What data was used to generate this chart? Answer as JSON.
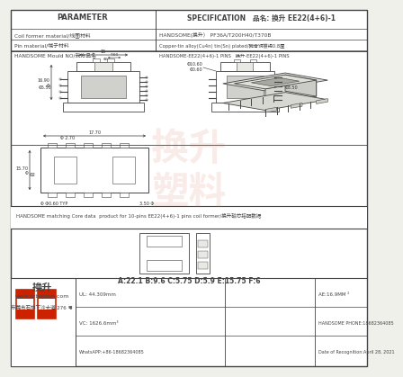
{
  "title": "PARAMETER",
  "spec_title": "SPECIFICATION   品名: 换升 EE22(4+6)-1",
  "row1_label": "Coil former material/线圈材料",
  "row1_val": "HANDSOME(换升） PF36A/T200H40/T370B",
  "row2_label": "Pin material/端子材料",
  "row2_val": "Copper-tin alloy(Cu4n) tin(Sn) plated/磷青铜镀锡0.8厘",
  "row3_label": "HANDSOME Mould NO/我方品名",
  "row3_val": "HANDSOME-EE22(4+6)-1 PINS   换升-EE22(4+6)-1 PINS",
  "bottom_note": "HANDSOME matching Core data  product for 10-pins EE22(4+6)-1 pins coil former/换升磁芯搭配数据",
  "dims": "A:22.1 B:9.6 C:5.75 D:5.9 E:15.75 F:6",
  "company": "换升  www.szbobbin.com",
  "address": "东莞市石排下沙大道 276 号",
  "ul": "UL: 44.309mm",
  "ae": "AE:16.9MM ²",
  "vc": "VC: 1626.6mm³",
  "phone": "HANDSOME PHONE:18682364085",
  "whatsapp": "WhatsAPP:+86-18682364085",
  "date": "Date of Recognition:April 28, 2021",
  "bg_color": "#f0f0eb",
  "line_color": "#444444",
  "dim_color": "#333333",
  "watermark_color": "#d06040",
  "logo_color": "#cc2200"
}
